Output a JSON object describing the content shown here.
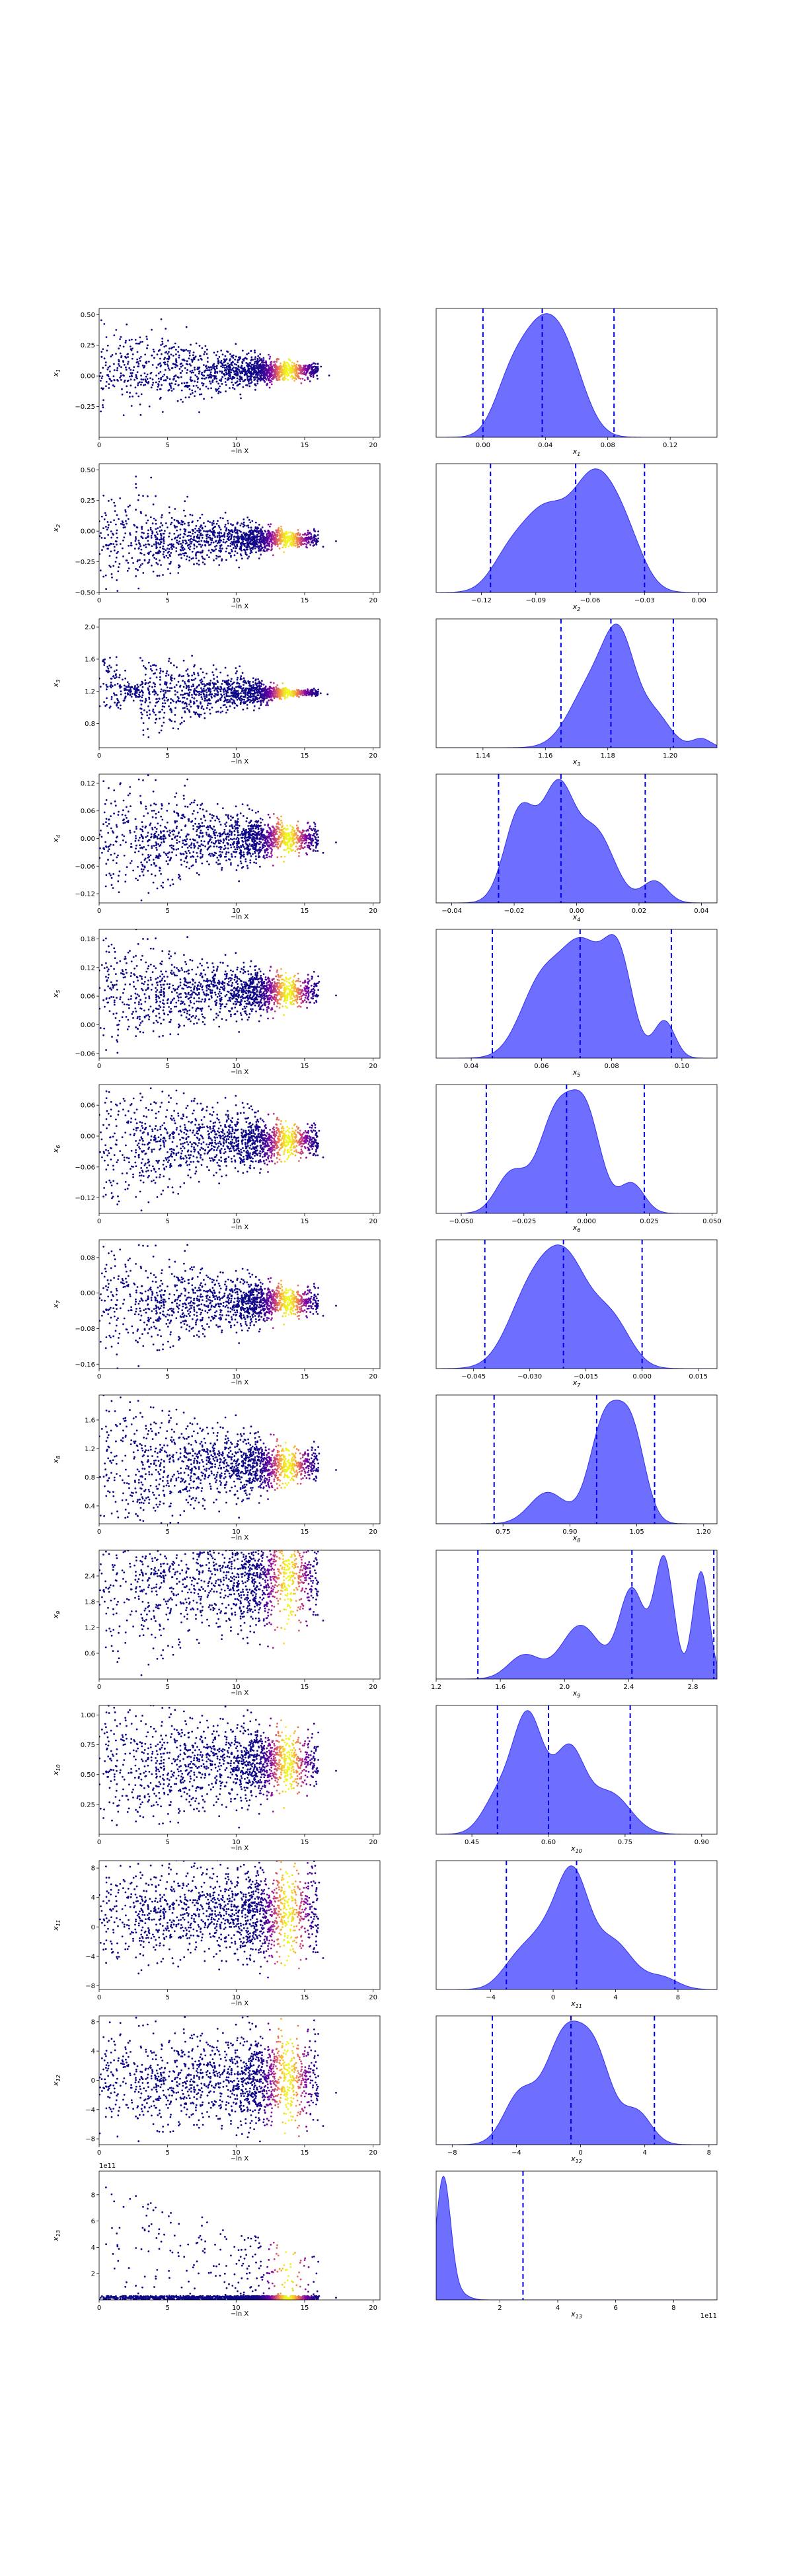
{
  "colors": {
    "trace_low": "#0d0887",
    "trace_high": "#f0f921",
    "kde_fill": "#5555ff",
    "kde_line": "#3333ee",
    "quantile_line": "#0000ee",
    "axis": "#000000"
  },
  "chart_data": {
    "type": "scatter",
    "description_layout": "trace-plot grid: left column traces vs -ln X, right column marginal KDE with quantile lines",
    "trace_xlabel": "−ln X",
    "trace_xticks": [
      0,
      5,
      10,
      15,
      20
    ],
    "trace_xlim": [
      0,
      20.5
    ],
    "offset_text": "1e11",
    "params": [
      {
        "ylabel": "x1",
        "trace_yticks": [
          -0.25,
          0.0,
          0.25,
          0.5
        ],
        "trace_ylim": [
          -0.5,
          0.55
        ],
        "trace_center": 0.04,
        "trace_spread0": 0.2,
        "trace_spread_end": 0.03,
        "kde_xticks": [
          0.0,
          0.04,
          0.08,
          0.12
        ],
        "kde_xlim": [
          -0.03,
          0.15
        ],
        "quantiles": [
          0.0,
          0.038,
          0.084
        ],
        "kde_peaks": [
          [
            0.036,
            1.0,
            0.014
          ],
          [
            0.055,
            0.55,
            0.012
          ],
          [
            0.016,
            0.35,
            0.01
          ]
        ],
        "kde_ticklabels": [
          "0.00",
          "0.04",
          "0.08",
          "0.12"
        ],
        "trace_ticklabels": [
          "−0.25",
          "0.00",
          "0.25",
          "0.50"
        ]
      },
      {
        "ylabel": "x2",
        "trace_yticks": [
          -0.5,
          -0.25,
          0.0,
          0.25,
          0.5
        ],
        "trace_ylim": [
          -0.5,
          0.55
        ],
        "trace_center": -0.065,
        "trace_spread0": 0.2,
        "trace_spread_end": 0.03,
        "kde_xticks": [
          -0.12,
          -0.09,
          -0.06,
          -0.03,
          0.0
        ],
        "kde_xlim": [
          -0.145,
          0.01
        ],
        "quantiles": [
          -0.115,
          -0.068,
          -0.03
        ],
        "kde_peaks": [
          [
            -0.058,
            1.0,
            0.012
          ],
          [
            -0.085,
            0.7,
            0.012
          ],
          [
            -0.04,
            0.4,
            0.01
          ],
          [
            -0.105,
            0.3,
            0.01
          ]
        ],
        "kde_ticklabels": [
          "−0.12",
          "−0.09",
          "−0.06",
          "−0.03",
          "0.00"
        ],
        "trace_ticklabels": [
          "−0.50",
          "−0.25",
          "0.00",
          "0.25",
          "0.50"
        ]
      },
      {
        "ylabel": "x3",
        "trace_yticks": [
          0.8,
          1.2,
          1.6,
          2.0
        ],
        "trace_ylim": [
          0.5,
          2.1
        ],
        "trace_center": 1.18,
        "trace_spread0": 0.35,
        "trace_spread_end": 0.02,
        "kde_xticks": [
          1.14,
          1.16,
          1.18,
          1.2
        ],
        "kde_xlim": [
          1.125,
          1.215
        ],
        "quantiles": [
          1.165,
          1.181,
          1.201
        ],
        "kde_peaks": [
          [
            1.184,
            1.0,
            0.005
          ],
          [
            1.175,
            0.7,
            0.007
          ],
          [
            1.195,
            0.35,
            0.005
          ],
          [
            1.21,
            0.1,
            0.003
          ]
        ],
        "kde_ticklabels": [
          "1.14",
          "1.16",
          "1.18",
          "1.20"
        ],
        "trace_ticklabels": [
          "0.8",
          "1.2",
          "1.6",
          "2.0"
        ]
      },
      {
        "ylabel": "x4",
        "trace_yticks": [
          -0.12,
          -0.06,
          0.0,
          0.06,
          0.12
        ],
        "trace_ylim": [
          -0.14,
          0.14
        ],
        "trace_center": 0.0,
        "trace_spread0": 0.07,
        "trace_spread_end": 0.015,
        "kde_xticks": [
          -0.04,
          -0.02,
          0.0,
          0.02,
          0.04
        ],
        "kde_xlim": [
          -0.045,
          0.045
        ],
        "quantiles": [
          -0.025,
          -0.005,
          0.022
        ],
        "kde_peaks": [
          [
            -0.006,
            1.0,
            0.005
          ],
          [
            -0.018,
            0.85,
            0.005
          ],
          [
            0.006,
            0.65,
            0.006
          ],
          [
            0.025,
            0.2,
            0.004
          ]
        ],
        "kde_ticklabels": [
          "−0.04",
          "−0.02",
          "0.00",
          "0.02",
          "0.04"
        ],
        "trace_ticklabels": [
          "−0.12",
          "−0.06",
          "0.00",
          "0.06",
          "0.12"
        ]
      },
      {
        "ylabel": "x5",
        "trace_yticks": [
          -0.06,
          0.0,
          0.06,
          0.12,
          0.18
        ],
        "trace_ylim": [
          -0.07,
          0.2
        ],
        "trace_center": 0.07,
        "trace_spread0": 0.06,
        "trace_spread_end": 0.015,
        "kde_xticks": [
          0.04,
          0.06,
          0.08,
          0.1
        ],
        "kde_xlim": [
          0.03,
          0.11
        ],
        "quantiles": [
          0.046,
          0.071,
          0.097
        ],
        "kde_peaks": [
          [
            0.072,
            1.0,
            0.006
          ],
          [
            0.082,
            0.85,
            0.004
          ],
          [
            0.06,
            0.7,
            0.006
          ],
          [
            0.095,
            0.35,
            0.003
          ]
        ],
        "kde_ticklabels": [
          "0.04",
          "0.06",
          "0.08",
          "0.10"
        ],
        "trace_ticklabels": [
          "−0.06",
          "0.00",
          "0.06",
          "0.12",
          "0.18"
        ]
      },
      {
        "ylabel": "x6",
        "trace_yticks": [
          -0.12,
          -0.06,
          0.0,
          0.06
        ],
        "trace_ylim": [
          -0.15,
          0.1
        ],
        "trace_center": -0.01,
        "trace_spread0": 0.07,
        "trace_spread_end": 0.015,
        "kde_xticks": [
          -0.05,
          -0.025,
          0.0,
          0.025,
          0.05
        ],
        "kde_xlim": [
          -0.06,
          0.052
        ],
        "quantiles": [
          -0.04,
          -0.008,
          0.023
        ],
        "kde_peaks": [
          [
            -0.012,
            1.0,
            0.007
          ],
          [
            0.0,
            0.9,
            0.006
          ],
          [
            -0.03,
            0.4,
            0.006
          ],
          [
            0.018,
            0.3,
            0.005
          ]
        ],
        "kde_ticklabels": [
          "−0.050",
          "−0.025",
          "0.000",
          "0.025",
          "0.050"
        ],
        "trace_ticklabels": [
          "−0.12",
          "−0.06",
          "0.00",
          "0.06"
        ]
      },
      {
        "ylabel": "x7",
        "trace_yticks": [
          -0.16,
          -0.08,
          0.0,
          0.08
        ],
        "trace_ylim": [
          -0.17,
          0.12
        ],
        "trace_center": -0.02,
        "trace_spread0": 0.07,
        "trace_spread_end": 0.015,
        "kde_xticks": [
          -0.045,
          -0.03,
          -0.015,
          0.0,
          0.015
        ],
        "kde_xlim": [
          -0.055,
          0.02
        ],
        "quantiles": [
          -0.042,
          -0.021,
          0.0
        ],
        "kde_peaks": [
          [
            -0.02,
            1.0,
            0.006
          ],
          [
            -0.03,
            0.7,
            0.006
          ],
          [
            -0.008,
            0.45,
            0.005
          ]
        ],
        "kde_ticklabels": [
          "−0.045",
          "−0.030",
          "−0.015",
          "0.000",
          "0.015"
        ],
        "trace_ticklabels": [
          "−0.16",
          "−0.08",
          "0.00",
          "0.08"
        ]
      },
      {
        "ylabel": "x8",
        "trace_yticks": [
          0.4,
          0.8,
          1.2,
          1.6
        ],
        "trace_ylim": [
          0.15,
          1.95
        ],
        "trace_center": 0.97,
        "trace_spread0": 0.55,
        "trace_spread_end": 0.12,
        "kde_xticks": [
          0.75,
          0.9,
          1.05,
          1.2
        ],
        "kde_xlim": [
          0.6,
          1.23
        ],
        "quantiles": [
          0.73,
          0.96,
          1.09
        ],
        "kde_peaks": [
          [
            0.98,
            1.0,
            0.035
          ],
          [
            1.04,
            0.8,
            0.03
          ],
          [
            0.85,
            0.3,
            0.04
          ]
        ],
        "kde_ticklabels": [
          "0.75",
          "0.90",
          "1.05",
          "1.20"
        ],
        "trace_ticklabels": [
          "0.4",
          "0.8",
          "1.2",
          "1.6"
        ]
      },
      {
        "ylabel": "x9",
        "trace_yticks": [
          0.6,
          1.2,
          1.8,
          2.4
        ],
        "trace_ylim": [
          0.0,
          3.0
        ],
        "trace_center": 2.4,
        "trace_spread0": 1.1,
        "trace_spread_end": 0.5,
        "kde_xticks": [
          1.2,
          1.6,
          2.0,
          2.4,
          2.8
        ],
        "kde_xlim": [
          1.2,
          2.95
        ],
        "quantiles": [
          1.46,
          2.42,
          2.93
        ],
        "kde_peaks": [
          [
            2.62,
            1.0,
            0.06
          ],
          [
            2.85,
            0.9,
            0.05
          ],
          [
            2.42,
            0.75,
            0.08
          ],
          [
            2.1,
            0.45,
            0.12
          ],
          [
            1.75,
            0.2,
            0.1
          ]
        ],
        "kde_ticklabels": [
          "1.2",
          "1.6",
          "2.0",
          "2.4",
          "2.8"
        ],
        "trace_ticklabels": [
          "0.6",
          "1.2",
          "1.8",
          "2.4"
        ]
      },
      {
        "ylabel": "x10",
        "trace_yticks": [
          0.25,
          0.5,
          0.75,
          1.0
        ],
        "trace_ylim": [
          0.0,
          1.08
        ],
        "trace_center": 0.6,
        "trace_spread0": 0.3,
        "trace_spread_end": 0.12,
        "kde_xticks": [
          0.45,
          0.6,
          0.75,
          0.9
        ],
        "kde_xlim": [
          0.38,
          0.93
        ],
        "quantiles": [
          0.5,
          0.6,
          0.76
        ],
        "kde_peaks": [
          [
            0.56,
            1.0,
            0.03
          ],
          [
            0.64,
            0.7,
            0.03
          ],
          [
            0.72,
            0.35,
            0.04
          ],
          [
            0.5,
            0.3,
            0.03
          ]
        ],
        "kde_ticklabels": [
          "0.45",
          "0.60",
          "0.75",
          "0.90"
        ],
        "trace_ticklabels": [
          "0.25",
          "0.50",
          "0.75",
          "1.00"
        ]
      },
      {
        "ylabel": "x11",
        "trace_yticks": [
          -8,
          -4,
          0,
          4,
          8
        ],
        "trace_ylim": [
          -8.5,
          9.0
        ],
        "trace_center": 2.0,
        "trace_spread0": 3.2,
        "trace_spread_end": 3.0,
        "kde_xticks": [
          -4,
          0,
          4,
          8
        ],
        "kde_xlim": [
          -7.5,
          10.5
        ],
        "quantiles": [
          -3.0,
          1.5,
          7.8
        ],
        "kde_peaks": [
          [
            1.3,
            1.0,
            1.0
          ],
          [
            -0.5,
            0.55,
            1.3
          ],
          [
            3.8,
            0.5,
            1.3
          ],
          [
            -2.5,
            0.2,
            1.0
          ],
          [
            7.0,
            0.12,
            1.0
          ]
        ],
        "kde_ticklabels": [
          "−4",
          "0",
          "4",
          "8"
        ],
        "trace_ticklabels": [
          "−8",
          "−4",
          "0",
          "4",
          "8"
        ]
      },
      {
        "ylabel": "x12",
        "trace_yticks": [
          -8,
          -4,
          0,
          4,
          8
        ],
        "trace_ylim": [
          -8.8,
          8.8
        ],
        "trace_center": 0.0,
        "trace_spread0": 3.2,
        "trace_spread_end": 3.0,
        "kde_xticks": [
          -8,
          -4,
          0,
          4,
          8
        ],
        "kde_xlim": [
          -9,
          8.5
        ],
        "quantiles": [
          -5.5,
          -0.6,
          4.6
        ],
        "kde_peaks": [
          [
            -1.0,
            1.0,
            1.2
          ],
          [
            1.0,
            0.7,
            1.0
          ],
          [
            -3.8,
            0.45,
            1.0
          ],
          [
            3.5,
            0.3,
            0.9
          ]
        ],
        "kde_ticklabels": [
          "−8",
          "−4",
          "0",
          "4",
          "8"
        ],
        "trace_ticklabels": [
          "−8",
          "−4",
          "0",
          "4",
          "8"
        ]
      },
      {
        "ylabel": "x13",
        "trace_yticks": [
          2,
          4,
          6,
          8
        ],
        "trace_ylim": [
          0,
          9.8
        ],
        "trace_center": 0.2,
        "trace_spread0": 0.1,
        "trace_spread_end": 0.05,
        "kde_xticks": [
          2,
          4,
          6,
          8
        ],
        "kde_xlim": [
          -0.2,
          9.5
        ],
        "quantiles": [
          2.8
        ],
        "kde_peaks": [
          [
            0.05,
            1.0,
            0.25
          ],
          [
            0.6,
            0.05,
            0.3
          ]
        ],
        "kde_ticklabels": [
          "2",
          "4",
          "6",
          "8"
        ],
        "trace_ticklabels": [
          "2",
          "4",
          "6",
          "8"
        ],
        "exponent": "1e11"
      }
    ]
  }
}
